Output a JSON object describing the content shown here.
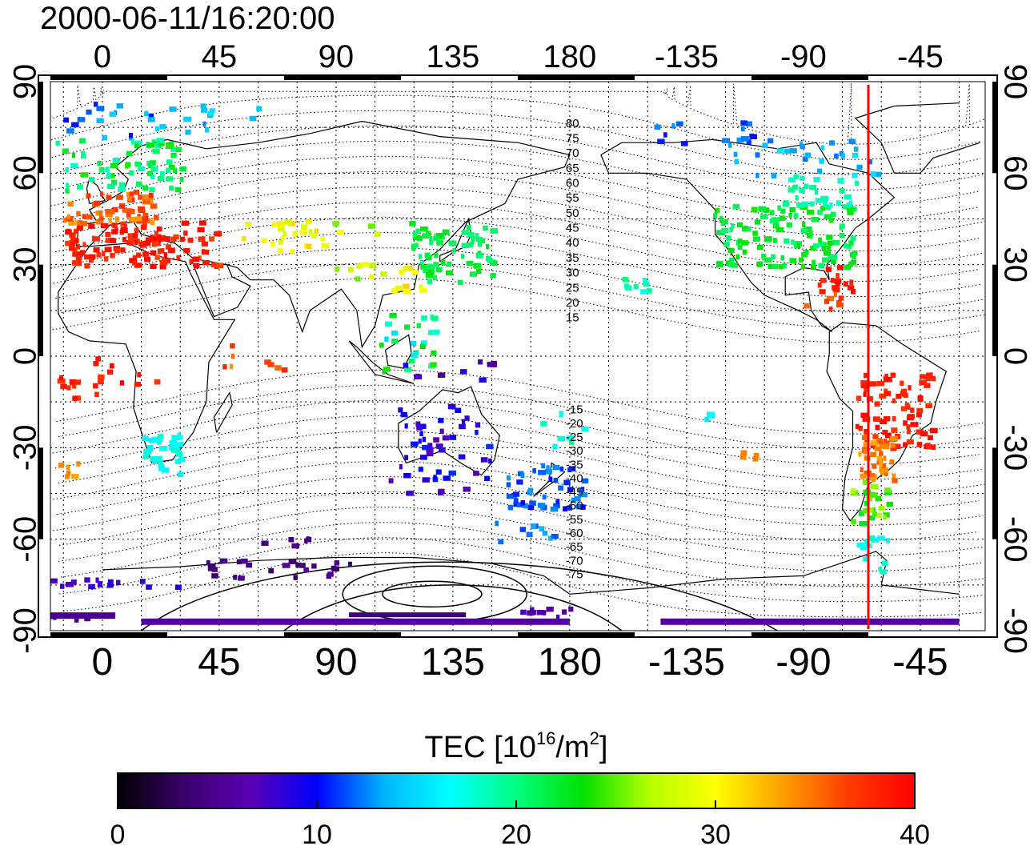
{
  "header": {
    "timestamp": "2000-06-11/16:20:00"
  },
  "map": {
    "lon_range": [
      -20,
      340
    ],
    "lat_range": [
      -90,
      90
    ],
    "lon_ticks_top": [
      "0",
      "45",
      "90",
      "135",
      "180",
      "-135",
      "-90",
      "-45"
    ],
    "lon_ticks_bottom": [
      "0",
      "45",
      "90",
      "135",
      "180",
      "-135",
      "-90",
      "-45"
    ],
    "lat_ticks_left": [
      "90",
      "60",
      "30",
      "0",
      "-30",
      "-60",
      "-90"
    ],
    "lat_ticks_right": [
      "90",
      "60",
      "30",
      "0",
      "-30",
      "-60",
      "-90"
    ],
    "meridian_line_lon": -65,
    "meridian_line_color": "#ff0000",
    "contour_labels": [
      "80",
      "75",
      "70",
      "65",
      "60",
      "55",
      "50",
      "45",
      "40",
      "35",
      "30",
      "25",
      "20",
      "15",
      "-15",
      "-20",
      "-25",
      "-30",
      "-35",
      "-40",
      "-45",
      "-50",
      "-55",
      "-60",
      "-65",
      "-70",
      "-75"
    ]
  },
  "colorbar": {
    "title_prefix": "TEC  [10",
    "title_exp1": "16",
    "title_mid": "/m",
    "title_exp2": "2",
    "title_suffix": "]",
    "min": 0,
    "max": 40,
    "tick_labels": [
      "0",
      "10",
      "20",
      "30",
      "40"
    ],
    "colors": [
      "#000000",
      "#3a006a",
      "#5a00b4",
      "#0000ff",
      "#00b4ff",
      "#00ffff",
      "#00ff80",
      "#00e000",
      "#b4ff00",
      "#ffff00",
      "#ffa000",
      "#ff3c00",
      "#ff0000"
    ]
  }
}
